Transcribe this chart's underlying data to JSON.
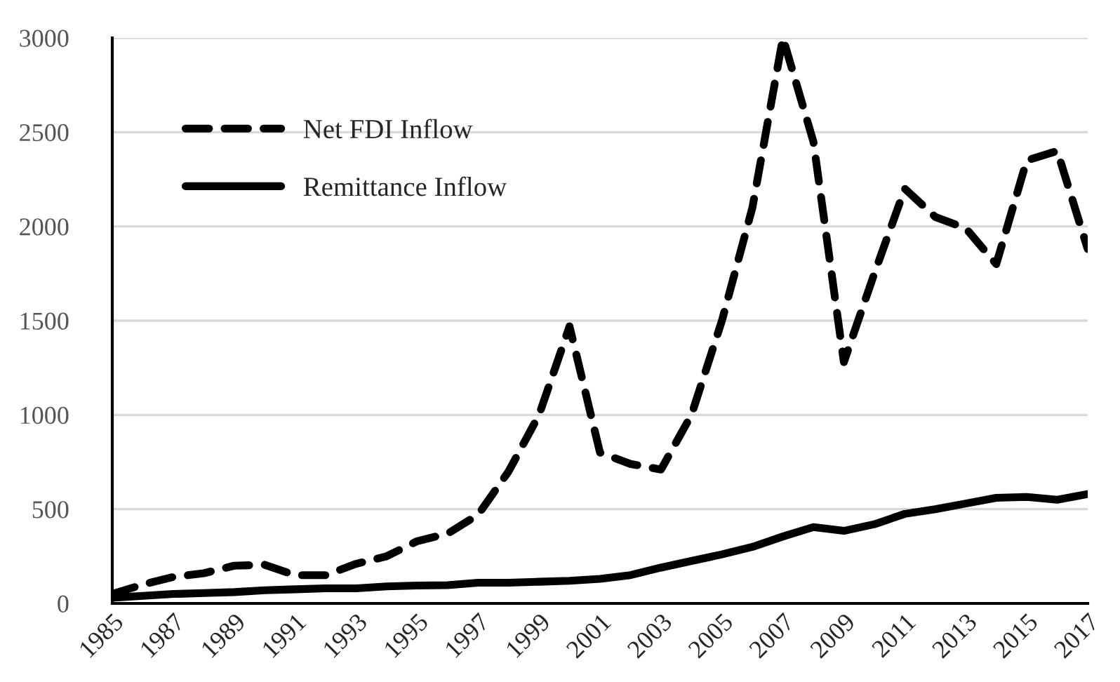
{
  "chart_data": {
    "type": "line",
    "categories": [
      "1985",
      null,
      "1987",
      null,
      "1989",
      null,
      "1991",
      null,
      "1993",
      null,
      "1995",
      null,
      "1997",
      null,
      "1999",
      null,
      "2001",
      null,
      "2003",
      null,
      "2005",
      null,
      "2007",
      null,
      "2009",
      null,
      "2011",
      null,
      "2013",
      null,
      "2015",
      null,
      "2017"
    ],
    "series": [
      {
        "name": "Net FDI Inflow",
        "color": "#000000",
        "line_style": "dashed",
        "values": [
          50,
          100,
          140,
          160,
          200,
          205,
          150,
          150,
          210,
          250,
          330,
          370,
          470,
          700,
          1000,
          1470,
          800,
          740,
          710,
          1000,
          1500,
          2100,
          3000,
          2450,
          1280,
          1750,
          2200,
          2050,
          1990,
          1800,
          2350,
          2400,
          1880
        ]
      },
      {
        "name": "Remittance Inflow",
        "color": "#000000",
        "line_style": "solid",
        "values": [
          30,
          40,
          50,
          55,
          60,
          70,
          75,
          80,
          80,
          90,
          95,
          97,
          110,
          110,
          115,
          120,
          130,
          150,
          190,
          225,
          260,
          300,
          355,
          405,
          385,
          420,
          475,
          500,
          530,
          560,
          565,
          550,
          580
        ]
      }
    ],
    "ylim": [
      0,
      3000
    ],
    "yticks": [
      0,
      500,
      1000,
      1500,
      2000,
      2500,
      3000
    ],
    "grid": "y",
    "legend": "top left",
    "marker": "none"
  }
}
